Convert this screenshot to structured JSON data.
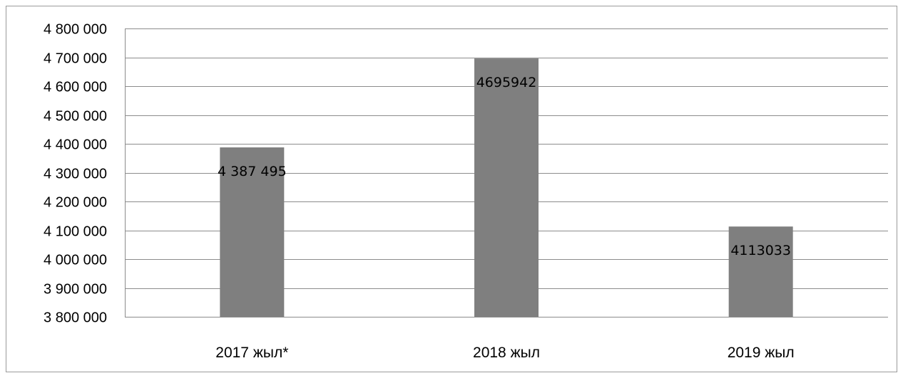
{
  "chart_data": {
    "type": "bar",
    "title": "",
    "xlabel": "",
    "ylabel": "",
    "categories": [
      "2017 жыл*",
      "2018 жыл",
      "2019 жыл"
    ],
    "values": [
      4387495,
      4695942,
      4113033
    ],
    "data_labels": [
      "4 387 495",
      "4695942",
      "4113033"
    ],
    "ylim": [
      3800000,
      4800000
    ],
    "yticks": [
      3800000,
      3900000,
      4000000,
      4100000,
      4200000,
      4300000,
      4400000,
      4500000,
      4600000,
      4700000,
      4800000
    ],
    "ytick_labels": [
      "3 800 000",
      "3 900 000",
      "4 000 000",
      "4 100 000",
      "4 200 000",
      "4 300 000",
      "4 400 000",
      "4 500 000",
      "4 600 000",
      "4 700 000",
      "4 800 000"
    ],
    "grid": true,
    "legend": "none",
    "colors": {
      "bar": "#7f7f7f",
      "grid": "#8c8c8c",
      "frame": "#9a9a9a"
    }
  }
}
